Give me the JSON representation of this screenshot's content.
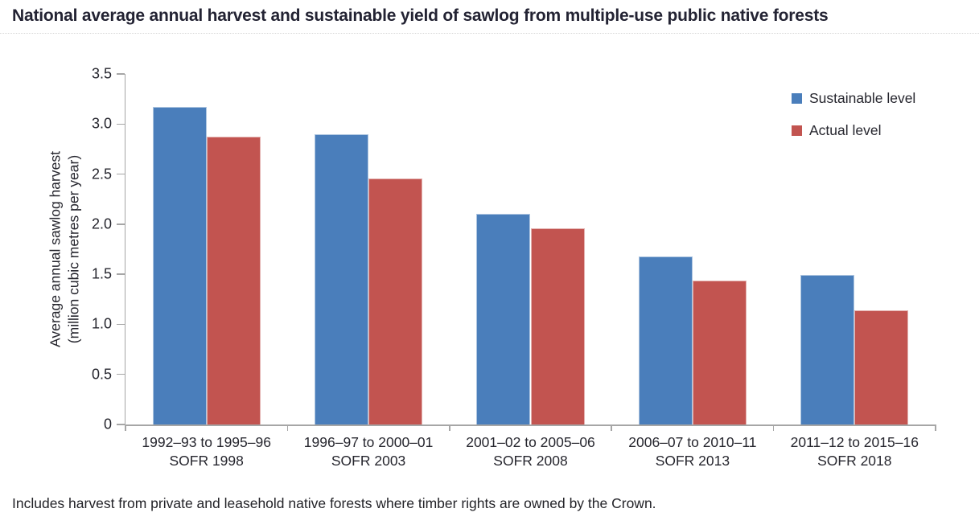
{
  "title": "National average annual harvest and sustainable yield of sawlog from multiple-use public native forests",
  "footnote": "Includes harvest from private and leasehold native forests where timber rights are owned by the Crown.",
  "chart_data": {
    "type": "bar",
    "title": "National average annual harvest and sustainable yield of sawlog from multiple-use public native forests",
    "ylabel_line1": "Average annual sawlog harvest",
    "ylabel_line2": "(million cubic metres per year)",
    "ylim": [
      0,
      3.5
    ],
    "ytick_step": 0.5,
    "ytick_labels": [
      "0",
      "0.5",
      "1.0",
      "1.5",
      "2.0",
      "2.5",
      "3.0",
      "3.5"
    ],
    "grid": false,
    "legend_position": "top-right",
    "categories": [
      {
        "period": "1992–93 to 1995–96",
        "report": "SOFR 1998"
      },
      {
        "period": "1996–97 to 2000–01",
        "report": "SOFR 2003"
      },
      {
        "period": "2001–02 to 2005–06",
        "report": "SOFR 2008"
      },
      {
        "period": "2006–07 to 2010–11",
        "report": "SOFR 2013"
      },
      {
        "period": "2011–12 to 2015–16",
        "report": "SOFR 2018"
      }
    ],
    "series": [
      {
        "name": "Sustainable level",
        "color": "#4a7ebb",
        "values": [
          3.17,
          2.9,
          2.1,
          1.68,
          1.49
        ]
      },
      {
        "name": "Actual level",
        "color": "#c25450",
        "values": [
          2.87,
          2.46,
          1.96,
          1.44,
          1.14
        ]
      }
    ],
    "axis_color": "#a6a6a6",
    "text_color": "#26262e"
  }
}
